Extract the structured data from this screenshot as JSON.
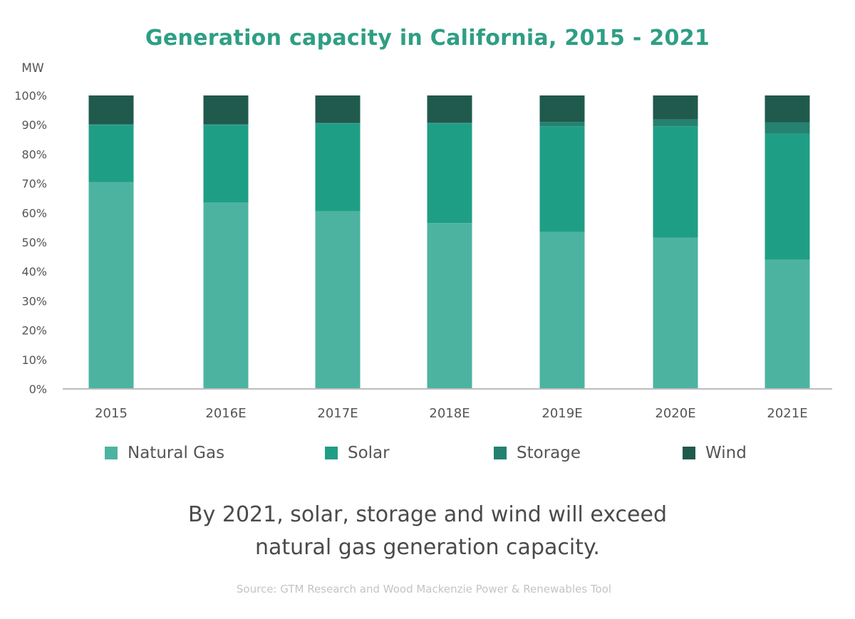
{
  "title": "Generation capacity in California, 2015 - 2021",
  "caption_line1": "By 2021, solar, storage and wind will exceed",
  "caption_line2": "natural gas generation capacity.",
  "source": "Source: GTM Research and Wood Mackenzie Power & Renewables Tool",
  "chart_data": {
    "type": "bar",
    "stacked": true,
    "ylabel": "MW",
    "ylim": [
      0,
      100
    ],
    "yticks": [
      "0%",
      "10%",
      "20%",
      "30%",
      "40%",
      "50%",
      "60%",
      "70%",
      "80%",
      "90%",
      "100%"
    ],
    "categories": [
      "2015",
      "2016E",
      "2017E",
      "2018E",
      "2019E",
      "2020E",
      "2021E"
    ],
    "series": [
      {
        "name": "Natural Gas",
        "color": "#4db3a1",
        "values": [
          70.5,
          63.5,
          60.5,
          56.5,
          53.5,
          51.5,
          44.0
        ]
      },
      {
        "name": "Solar",
        "color": "#1f9e86",
        "values": [
          19.5,
          26.5,
          30.0,
          34.0,
          36.0,
          38.0,
          43.0
        ]
      },
      {
        "name": "Storage",
        "color": "#258170",
        "values": [
          0.1,
          0.1,
          0.1,
          0.2,
          1.5,
          2.3,
          3.8
        ]
      },
      {
        "name": "Wind",
        "color": "#1f5a4d",
        "values": [
          9.9,
          9.9,
          9.4,
          9.3,
          9.0,
          8.2,
          9.2
        ]
      }
    ],
    "legend_position": "bottom",
    "grid": false
  }
}
